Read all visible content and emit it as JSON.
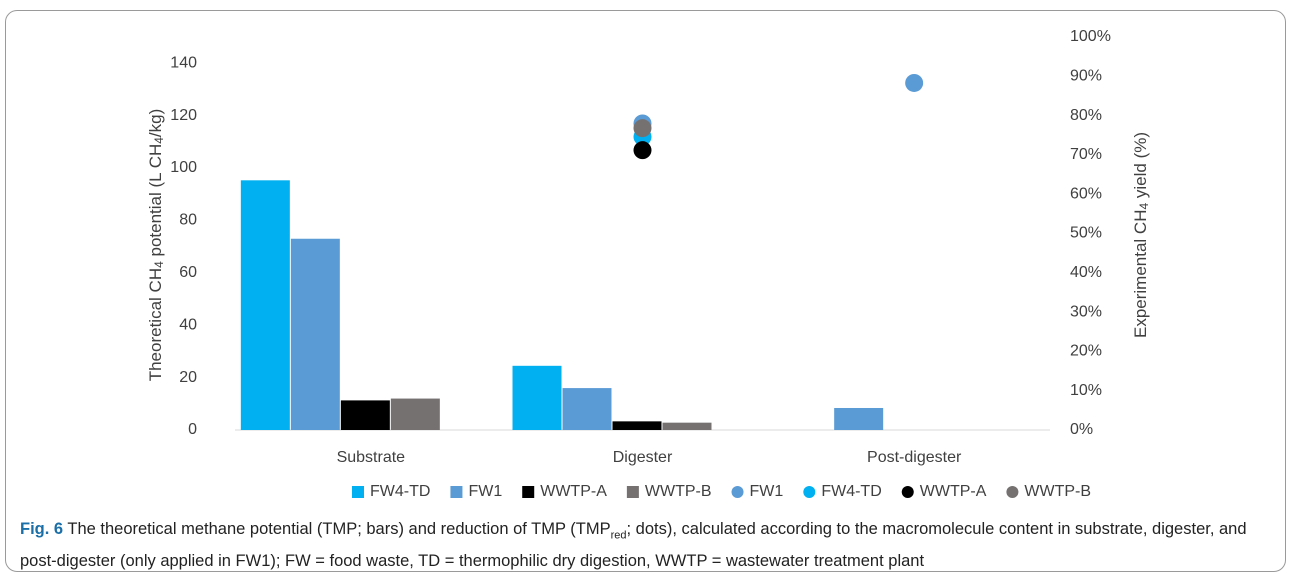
{
  "chart_data": {
    "type": "bar",
    "y_label": [
      "Theoretical CH",
      "4",
      " potential (L CH",
      "4",
      "/kg)"
    ],
    "y2_label": [
      "Experimental CH",
      "4",
      " yield (%)"
    ],
    "categories": [
      "Substrate",
      "Digester",
      "Post-digester"
    ],
    "ylim": [
      0,
      150
    ],
    "yticks": [
      0,
      20,
      40,
      60,
      80,
      100,
      120,
      140
    ],
    "y2lim": [
      0,
      100
    ],
    "y2ticks": [
      {
        "value": 0,
        "label": "0%"
      },
      {
        "value": 10,
        "label": "10%"
      },
      {
        "value": 20,
        "label": "20%"
      },
      {
        "value": 30,
        "label": "30%"
      },
      {
        "value": 40,
        "label": "40%"
      },
      {
        "value": 50,
        "label": "50%"
      },
      {
        "value": 60,
        "label": "60%"
      },
      {
        "value": 70,
        "label": "70%"
      },
      {
        "value": 80,
        "label": "80%"
      },
      {
        "value": 90,
        "label": "90%"
      },
      {
        "value": 100,
        "label": "100%"
      }
    ],
    "grid": false,
    "legend": "bottom",
    "series": [
      {
        "name": "FW4-TD",
        "type": "bar",
        "color": "#00b0f0",
        "values": [
          95.3,
          24.5,
          null
        ]
      },
      {
        "name": "FW1",
        "type": "bar",
        "color": "#5b9bd5",
        "values": [
          73,
          16,
          8.4
        ]
      },
      {
        "name": "WWTP-A",
        "type": "bar",
        "color": "#000000",
        "values": [
          11.3,
          3.3,
          null
        ]
      },
      {
        "name": "WWTP-B",
        "type": "bar",
        "color": "#767171",
        "values": [
          12,
          2.8,
          null
        ]
      },
      {
        "name": "FW1",
        "type": "scatter",
        "axis": "y2",
        "color": "#5b9bd5",
        "values": [
          null,
          78,
          88.3
        ]
      },
      {
        "name": "FW4-TD",
        "type": "scatter",
        "axis": "y2",
        "color": "#00b0f0",
        "values": [
          null,
          74.6,
          null
        ]
      },
      {
        "name": "WWTP-A",
        "type": "scatter",
        "axis": "y2",
        "color": "#000000",
        "values": [
          null,
          71.2,
          null
        ]
      },
      {
        "name": "WWTP-B",
        "type": "scatter",
        "axis": "y2",
        "color": "#767171",
        "values": [
          null,
          76.8,
          null
        ]
      }
    ]
  },
  "caption": {
    "label": "Fig. 6",
    "text1": " The theoretical methane potential (TMP; bars) and reduction of TMP (TMP",
    "sub": "red",
    "text2": "; dots), calculated according to the macromolecule content in substrate, digester, and post-digester (only applied in FW1); FW = food waste, TD = thermophilic dry digestion, WWTP = wastewater treatment plant"
  }
}
